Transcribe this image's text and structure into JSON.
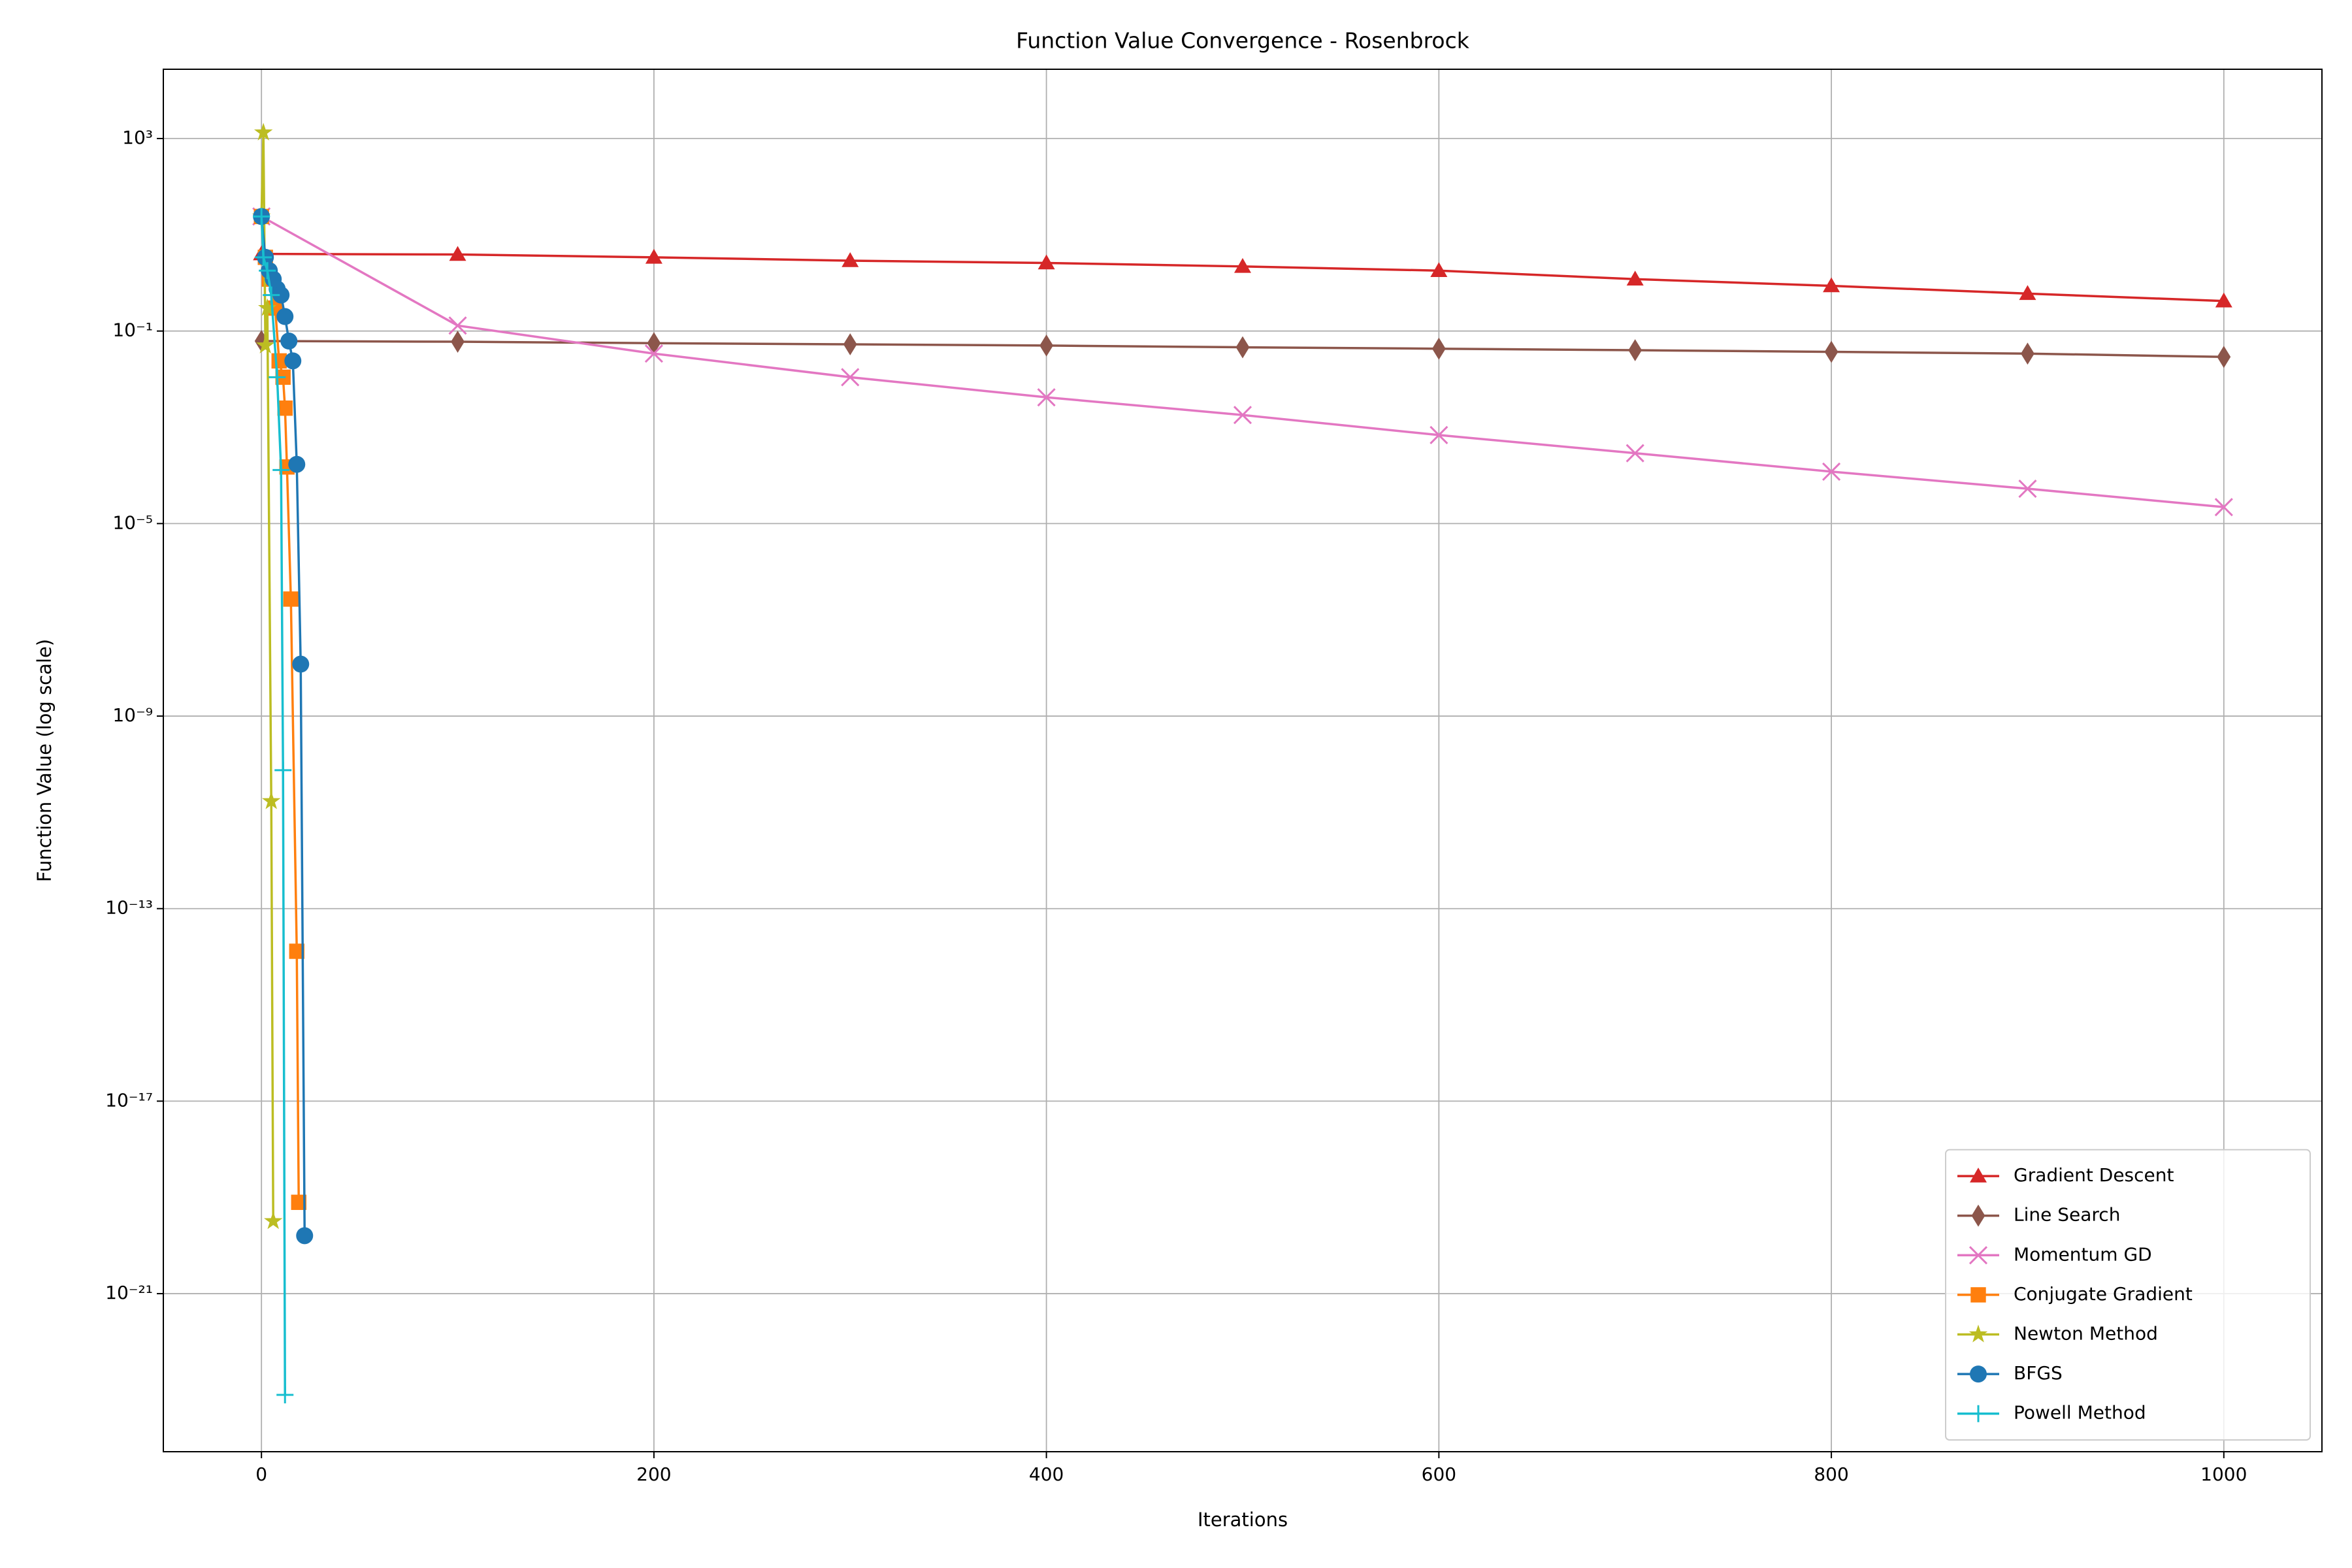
{
  "chart_data": {
    "type": "line",
    "title": "Function Value Convergence - Rosenbrock",
    "xlabel": "Iterations",
    "ylabel": "Function Value (log scale)",
    "xlim": [
      -50,
      1050
    ],
    "xticks": [
      0,
      200,
      400,
      600,
      800,
      1000
    ],
    "ylim": [
      5.2e-25,
      27500
    ],
    "yscale": "log",
    "yticks": [
      {
        "value": 1000,
        "label": "10³"
      },
      {
        "value": 0.1,
        "label": "10⁻¹"
      },
      {
        "value": 1e-05,
        "label": "10⁻⁵"
      },
      {
        "value": 1e-09,
        "label": "10⁻⁹"
      },
      {
        "value": 1e-13,
        "label": "10⁻¹³"
      },
      {
        "value": 1e-17,
        "label": "10⁻¹⁷"
      },
      {
        "value": 1e-21,
        "label": "10⁻²¹"
      }
    ],
    "grid": true,
    "legend": "lower right",
    "series": [
      {
        "name": "Gradient Descent",
        "color": "#d62728",
        "marker": "triangle",
        "x": [
          0,
          100,
          200,
          300,
          400,
          500,
          600,
          700,
          800,
          900,
          1000
        ],
        "values": [
          4.0,
          3.9,
          3.4,
          2.9,
          2.6,
          2.2,
          1.8,
          1.2,
          0.87,
          0.6,
          0.42
        ]
      },
      {
        "name": "Line Search",
        "color": "#8c564b",
        "marker": "diamond",
        "x": [
          0,
          100,
          200,
          300,
          400,
          500,
          600,
          700,
          800,
          900,
          1000
        ],
        "values": [
          0.062,
          0.06,
          0.056,
          0.053,
          0.05,
          0.046,
          0.043,
          0.04,
          0.037,
          0.034,
          0.029
        ]
      },
      {
        "name": "Momentum GD",
        "color": "#e377c2",
        "marker": "x",
        "x": [
          0,
          100,
          200,
          300,
          400,
          500,
          600,
          700,
          800,
          900,
          1000
        ],
        "values": [
          24,
          0.13,
          0.034,
          0.011,
          0.0042,
          0.0018,
          0.00069,
          0.00029,
          0.00012,
          5.3e-05,
          2.2e-05
        ]
      },
      {
        "name": "Conjugate Gradient",
        "color": "#ff7f0e",
        "marker": "square",
        "x": [
          0,
          2,
          4,
          7,
          9,
          11,
          12,
          13,
          15,
          18,
          19
        ],
        "values": [
          24,
          3.4,
          1.2,
          0.3,
          0.024,
          0.011,
          0.0025,
          0.00015,
          2.7e-07,
          1.3e-14,
          7.9e-20
        ]
      },
      {
        "name": "Newton Method",
        "color": "#bcbd22",
        "marker": "star",
        "x": [
          0,
          1,
          2,
          3,
          5,
          6
        ],
        "values": [
          24,
          1330,
          0.05,
          0.3,
          1.7e-11,
          3.2e-20
        ]
      },
      {
        "name": "BFGS",
        "color": "#1f77b4",
        "marker": "circle",
        "x": [
          0,
          2,
          4,
          6,
          8,
          10,
          12,
          14,
          16,
          18,
          20,
          22
        ],
        "values": [
          24,
          3.4,
          1.8,
          1.2,
          0.75,
          0.56,
          0.2,
          0.062,
          0.024,
          0.00017,
          1.2e-08,
          1.6e-20
        ]
      },
      {
        "name": "Powell Method",
        "color": "#17becf",
        "marker": "plus",
        "x": [
          0,
          1,
          3,
          5,
          8,
          10,
          11,
          12
        ],
        "values": [
          24,
          3.4,
          1.8,
          0.56,
          0.011,
          0.00013,
          7.5e-11,
          7.9e-24
        ]
      }
    ]
  }
}
